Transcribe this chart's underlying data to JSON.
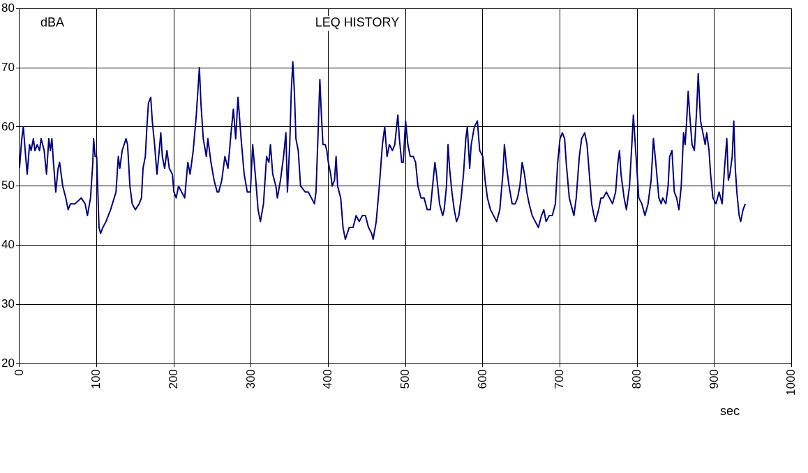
{
  "chart_data": {
    "type": "line",
    "title": "LEQ HISTORY",
    "xlabel": "sec",
    "ylabel": "dBA",
    "xlim": [
      0,
      1000
    ],
    "xticks": [
      0,
      100,
      200,
      300,
      400,
      500,
      600,
      700,
      800,
      900,
      1000
    ],
    "ylim": [
      20,
      80
    ],
    "yticks": [
      20,
      30,
      40,
      50,
      60,
      70,
      80
    ],
    "grid": true,
    "legend": false,
    "marker": "none",
    "line_style": "solid",
    "series": [
      {
        "color": "#000080",
        "x": [
          0,
          3,
          5,
          8,
          10,
          13,
          15,
          18,
          20,
          23,
          26,
          28,
          32,
          35,
          38,
          40,
          42,
          44,
          47,
          50,
          52,
          56,
          60,
          63,
          66,
          72,
          80,
          85,
          88,
          92,
          95,
          96,
          98,
          100,
          103,
          105,
          108,
          112,
          118,
          125,
          128,
          130,
          133,
          138,
          140,
          143,
          146,
          150,
          155,
          158,
          160,
          163,
          165,
          167,
          170,
          172,
          175,
          178,
          181,
          183,
          185,
          188,
          191,
          194,
          198,
          200,
          203,
          206,
          210,
          214,
          218,
          221,
          225,
          229,
          233,
          235,
          238,
          242,
          244,
          248,
          252,
          256,
          258,
          262,
          266,
          270,
          274,
          277,
          280,
          283,
          287,
          291,
          295,
          299,
          302,
          306,
          309,
          312,
          316,
          320,
          323,
          325,
          328,
          332,
          334,
          338,
          342,
          345,
          347,
          350,
          352,
          354,
          356,
          358,
          361,
          364,
          370,
          374,
          378,
          382,
          384,
          387,
          389,
          391,
          393,
          396,
          398,
          400,
          403,
          405,
          408,
          410,
          412,
          416,
          419,
          422,
          427,
          432,
          436,
          440,
          444,
          448,
          452,
          456,
          458,
          462,
          466,
          470,
          473,
          476,
          479,
          483,
          486,
          490,
          492,
          495,
          497,
          500,
          503,
          506,
          510,
          513,
          516,
          520,
          524,
          528,
          532,
          535,
          538,
          540,
          544,
          548,
          550,
          553,
          555,
          557,
          560,
          563,
          566,
          569,
          572,
          575,
          578,
          580,
          583,
          585,
          589,
          593,
          596,
          600,
          603,
          606,
          610,
          614,
          618,
          622,
          626,
          628,
          631,
          634,
          638,
          642,
          645,
          648,
          651,
          654,
          657,
          660,
          664,
          668,
          672,
          676,
          679,
          682,
          686,
          690,
          694,
          697,
          700,
          703,
          706,
          708,
          712,
          716,
          718,
          721,
          725,
          728,
          732,
          735,
          738,
          741,
          744,
          746,
          750,
          753,
          756,
          760,
          764,
          768,
          772,
          775,
          777,
          779,
          783,
          786,
          790,
          793,
          795,
          798,
          802,
          806,
          810,
          814,
          818,
          821,
          824,
          828,
          831,
          833,
          837,
          840,
          842,
          845,
          848,
          851,
          854,
          857,
          860,
          862,
          864,
          866,
          868,
          871,
          874,
          877,
          879,
          882,
          885,
          888,
          890,
          893,
          895,
          898,
          902,
          906,
          910,
          913,
          916,
          918,
          920,
          923,
          925,
          927,
          929,
          932,
          934,
          937,
          940
        ],
        "values": [
          53,
          58,
          60,
          55,
          52,
          57,
          56,
          58,
          56,
          57,
          56,
          58,
          56,
          52,
          58,
          56,
          58,
          54,
          49,
          53,
          54,
          50,
          48,
          46,
          47,
          47,
          48,
          47,
          45,
          48,
          54,
          58,
          55,
          55,
          43,
          42,
          43,
          44,
          46,
          49,
          55,
          53,
          56,
          58,
          57,
          50,
          47,
          46,
          47,
          48,
          53,
          55,
          60,
          64,
          65,
          61,
          57,
          52,
          56,
          59,
          55,
          53,
          56,
          53,
          52,
          49,
          48,
          50,
          49,
          48,
          54,
          52,
          56,
          62,
          70,
          64,
          58,
          55,
          58,
          54,
          51,
          49,
          49,
          51,
          55,
          53,
          59,
          63,
          58,
          65,
          58,
          52,
          49,
          49,
          57,
          51,
          46,
          44,
          47,
          55,
          54,
          57,
          52,
          50,
          48,
          51,
          55,
          59,
          49,
          57,
          66,
          71,
          66,
          58,
          56,
          50,
          49,
          49,
          48,
          47,
          49,
          60,
          68,
          62,
          57,
          57,
          56,
          54,
          52,
          50,
          51,
          55,
          50,
          48,
          43,
          41,
          43,
          43,
          45,
          44,
          45,
          45,
          43,
          42,
          41,
          44,
          50,
          57,
          60,
          55,
          57,
          56,
          57,
          62,
          58,
          54,
          54,
          61,
          57,
          55,
          55,
          54,
          50,
          48,
          48,
          46,
          46,
          50,
          54,
          52,
          47,
          45,
          46,
          50,
          57,
          53,
          49,
          46,
          44,
          45,
          48,
          52,
          58,
          60,
          53,
          57,
          60,
          61,
          56,
          55,
          51,
          48,
          46,
          45,
          44,
          46,
          52,
          57,
          53,
          50,
          47,
          47,
          48,
          50,
          54,
          52,
          49,
          47,
          45,
          44,
          43,
          45,
          46,
          44,
          45,
          45,
          47,
          54,
          58,
          59,
          58,
          54,
          48,
          46,
          45,
          48,
          55,
          58,
          59,
          57,
          52,
          47,
          45,
          44,
          46,
          48,
          48,
          49,
          48,
          47,
          49,
          54,
          56,
          52,
          48,
          46,
          50,
          57,
          62,
          56,
          48,
          47,
          45,
          47,
          51,
          58,
          54,
          48,
          47,
          48,
          47,
          50,
          55,
          56,
          49,
          48,
          46,
          50,
          59,
          57,
          61,
          66,
          62,
          57,
          56,
          63,
          69,
          61,
          59,
          57,
          59,
          56,
          52,
          48,
          47,
          49,
          47,
          53,
          58,
          51,
          52,
          55,
          61,
          53,
          49,
          45,
          44,
          46,
          47
        ]
      }
    ]
  }
}
